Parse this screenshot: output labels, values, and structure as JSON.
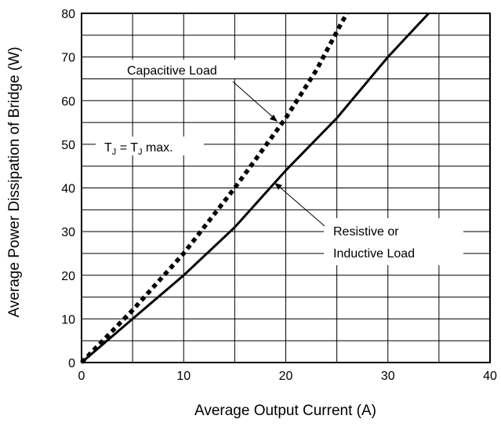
{
  "chart_data": {
    "type": "line",
    "title": "",
    "xlabel": "Average Output Current (A)",
    "ylabel": "Average Power Dissipation of Bridge (W)",
    "xlim": [
      0,
      40
    ],
    "ylim": [
      0,
      80
    ],
    "x_ticks": [
      "0",
      "10",
      "20",
      "30",
      "40"
    ],
    "y_ticks": [
      "0",
      "10",
      "20",
      "30",
      "40",
      "50",
      "60",
      "70",
      "80"
    ],
    "grid": true,
    "series": [
      {
        "name": "Capacitive Load",
        "style": "dotted",
        "points": [
          [
            0,
            0
          ],
          [
            5,
            12
          ],
          [
            10,
            25
          ],
          [
            15,
            40
          ],
          [
            20,
            56
          ],
          [
            23,
            67
          ],
          [
            25.5,
            78
          ],
          [
            26,
            80
          ]
        ]
      },
      {
        "name": "Resistive or Inductive Load",
        "style": "solid",
        "points": [
          [
            0,
            0
          ],
          [
            5,
            10
          ],
          [
            10,
            20
          ],
          [
            15,
            31
          ],
          [
            20,
            44
          ],
          [
            25,
            56
          ],
          [
            30,
            70
          ],
          [
            34,
            80
          ]
        ]
      }
    ],
    "annotations": {
      "capacitive": "Capacitive Load",
      "resistive_line1": "Resistive or",
      "resistive_line2": "Inductive Load",
      "tj_main": "T",
      "tj_sub": "J",
      "tj_eq": " = T",
      "tj_sub2": "J",
      "tj_max": " max."
    },
    "line_color": "#000000"
  }
}
